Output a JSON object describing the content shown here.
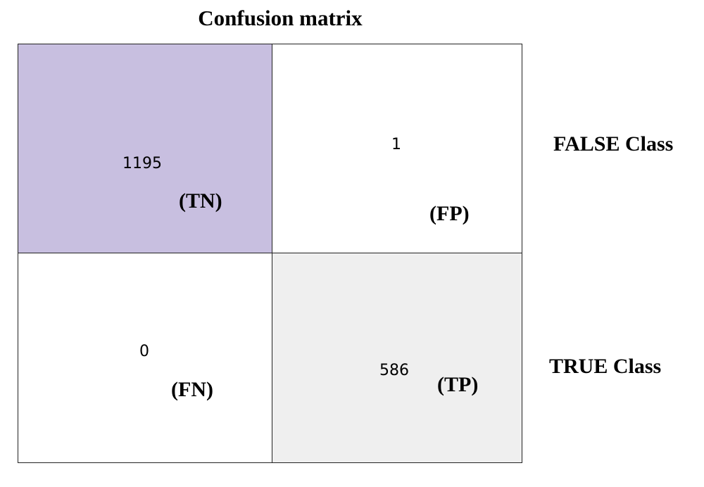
{
  "title": "Confusion matrix",
  "row_labels": {
    "false_class": "FALSE Class",
    "true_class": "TRUE Class"
  },
  "cells": {
    "tn": {
      "value": "1195",
      "label": "(TN)",
      "color": "#c8bfe0"
    },
    "fp": {
      "value": "1",
      "label": "(FP)",
      "color": "#ffffff"
    },
    "fn": {
      "value": "0",
      "label": "(FN)",
      "color": "#ffffff"
    },
    "tp": {
      "value": "586",
      "label": "(TP)",
      "color": "#efefef"
    }
  },
  "chart_data": {
    "type": "heatmap",
    "title": "Confusion matrix",
    "row_labels": [
      "FALSE Class",
      "TRUE Class"
    ],
    "values": [
      [
        1195,
        1
      ],
      [
        0,
        586
      ]
    ],
    "cell_labels": [
      [
        "(TN)",
        "(FP)"
      ],
      [
        "(FN)",
        "(TP)"
      ]
    ]
  }
}
